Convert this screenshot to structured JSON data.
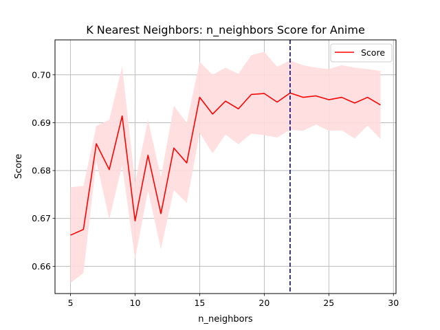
{
  "chart_data": {
    "type": "line",
    "title": "K Nearest Neighbors: n_neighbors Score for Anime",
    "xlabel": "n_neighbors",
    "ylabel": "Score",
    "xlim": [
      3.8,
      30.2
    ],
    "ylim": [
      0.6543,
      0.7073
    ],
    "xticks": [
      5,
      10,
      15,
      20,
      25,
      30
    ],
    "yticks": [
      0.66,
      0.67,
      0.68,
      0.69,
      0.7
    ],
    "ytick_labels": [
      "0.66",
      "0.67",
      "0.68",
      "0.69",
      "0.70"
    ],
    "grid": true,
    "legend": {
      "placement": "top-right",
      "entries": [
        "Score"
      ]
    },
    "colors": {
      "line": "#ff0000",
      "band": "#ffdcdc",
      "vline": "#00008b",
      "grid": "#b0b0b0"
    },
    "vline": {
      "x": 22,
      "style": "dashed"
    },
    "series": [
      {
        "name": "Score",
        "x": [
          5,
          6,
          7,
          8,
          9,
          10,
          11,
          12,
          13,
          14,
          15,
          16,
          17,
          18,
          19,
          20,
          21,
          22,
          23,
          24,
          25,
          26,
          27,
          28,
          29
        ],
        "y": [
          0.6665,
          0.6677,
          0.6856,
          0.6802,
          0.6914,
          0.6695,
          0.6832,
          0.671,
          0.6847,
          0.6816,
          0.6953,
          0.6918,
          0.6945,
          0.6929,
          0.6959,
          0.6961,
          0.6943,
          0.6962,
          0.6953,
          0.6956,
          0.6948,
          0.6953,
          0.6941,
          0.6953,
          0.6937
        ],
        "upper": [
          0.6765,
          0.6768,
          0.6893,
          0.6906,
          0.7017,
          0.6775,
          0.6906,
          0.6786,
          0.6935,
          0.69,
          0.7027,
          0.7,
          0.7015,
          0.7002,
          0.7041,
          0.7048,
          0.7017,
          0.703,
          0.702,
          0.7015,
          0.7012,
          0.702,
          0.7015,
          0.7012,
          0.7008
        ],
        "lower": [
          0.6565,
          0.6586,
          0.682,
          0.6698,
          0.6811,
          0.6615,
          0.6758,
          0.6636,
          0.6759,
          0.6732,
          0.6879,
          0.6836,
          0.6875,
          0.6855,
          0.6877,
          0.6874,
          0.6869,
          0.6885,
          0.6883,
          0.6896,
          0.6883,
          0.6884,
          0.6867,
          0.6894,
          0.6866
        ]
      }
    ]
  }
}
